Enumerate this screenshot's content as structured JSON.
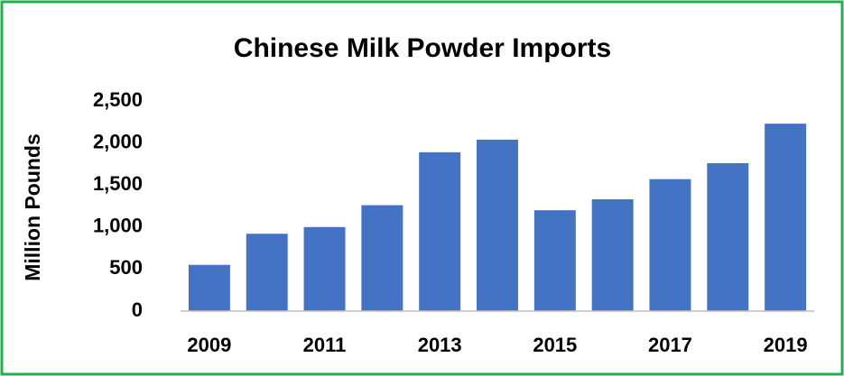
{
  "chart_data": {
    "type": "bar",
    "title": "Chinese Milk Powder Imports",
    "y_label": "Million Pounds",
    "categories": [
      "2009",
      null,
      "2011",
      null,
      "2013",
      null,
      "2015",
      null,
      "2017",
      null,
      "2019"
    ],
    "values": [
      550,
      920,
      1000,
      1260,
      1890,
      2040,
      1200,
      1330,
      1570,
      1760,
      2230
    ],
    "color": "#4472c4",
    "ylim": [
      0,
      2500
    ],
    "yticks": [
      0,
      500,
      {
        "value": 1000,
        "label": "1,000"
      },
      {
        "value": 1500,
        "label": "1,500"
      },
      {
        "value": 2000,
        "label": "2,000"
      },
      {
        "value": 2500,
        "label": "2,500"
      }
    ],
    "grid": false
  }
}
